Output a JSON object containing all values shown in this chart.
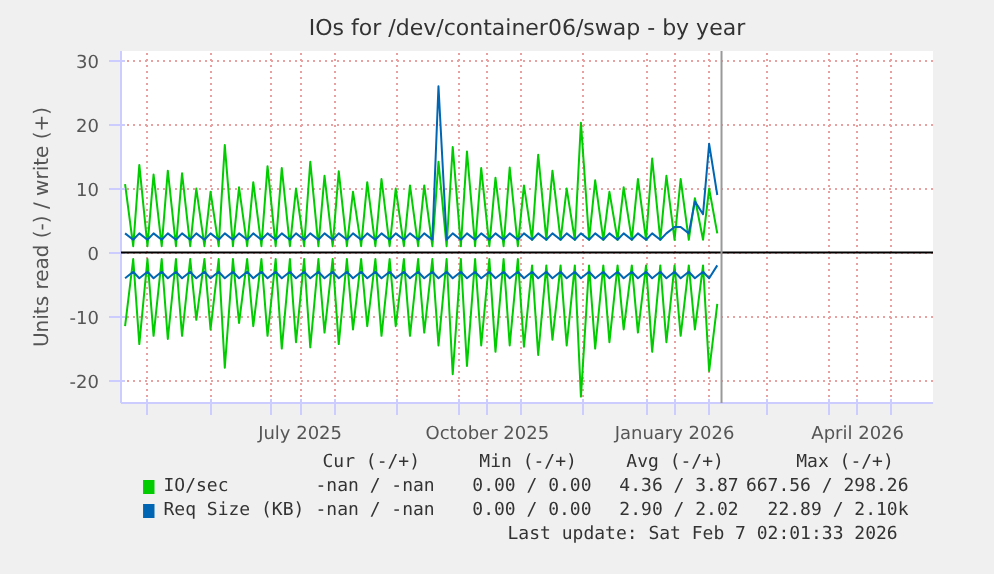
{
  "chart_data": {
    "type": "line",
    "title": "IOs for /dev/container06/swap - by year",
    "ylabel": "Units read (-) / write (+)",
    "x": [
      "2025-04-20",
      "2025-04-24",
      "2025-04-27",
      "2025-05-01",
      "2025-05-04",
      "2025-05-08",
      "2025-05-11",
      "2025-05-15",
      "2025-05-18",
      "2025-05-22",
      "2025-05-25",
      "2025-05-29",
      "2025-06-01",
      "2025-06-05",
      "2025-06-08",
      "2025-06-12",
      "2025-06-15",
      "2025-06-19",
      "2025-06-22",
      "2025-06-26",
      "2025-06-29",
      "2025-07-03",
      "2025-07-06",
      "2025-07-10",
      "2025-07-13",
      "2025-07-17",
      "2025-07-20",
      "2025-07-24",
      "2025-07-27",
      "2025-07-31",
      "2025-08-03",
      "2025-08-07",
      "2025-08-10",
      "2025-08-14",
      "2025-08-17",
      "2025-08-21",
      "2025-08-24",
      "2025-08-28",
      "2025-08-31",
      "2025-09-04",
      "2025-09-07",
      "2025-09-11",
      "2025-09-14",
      "2025-09-18",
      "2025-09-21",
      "2025-09-25",
      "2025-09-28",
      "2025-10-02",
      "2025-10-05",
      "2025-10-09",
      "2025-10-12",
      "2025-10-16",
      "2025-10-19",
      "2025-10-23",
      "2025-10-26",
      "2025-10-30",
      "2025-11-02",
      "2025-11-06",
      "2025-11-09",
      "2025-11-13",
      "2025-11-16",
      "2025-11-20",
      "2025-11-23",
      "2025-11-27",
      "2025-11-30",
      "2025-12-04",
      "2025-12-07",
      "2025-12-11",
      "2025-12-14",
      "2025-12-18",
      "2025-12-21",
      "2025-12-25",
      "2025-12-28",
      "2026-01-01",
      "2026-01-04",
      "2026-01-08",
      "2026-01-11",
      "2026-01-15",
      "2026-01-18",
      "2026-01-22",
      "2026-01-25",
      "2026-01-29",
      "2026-02-01",
      "2026-02-05"
    ],
    "series": [
      {
        "name": "IO/sec",
        "color": "#00cc00",
        "values": [
          10.7,
          1,
          13.7,
          1,
          12.2,
          1,
          12.8,
          1,
          12.4,
          1,
          10,
          1,
          9.5,
          1,
          16.8,
          1,
          10.2,
          1,
          11,
          1,
          13.5,
          1,
          13.2,
          1,
          10,
          1,
          14.2,
          1,
          12,
          1,
          12.7,
          1,
          9.5,
          1,
          11,
          1,
          11.5,
          1,
          10,
          1,
          10.5,
          1,
          10.5,
          1,
          14.2,
          1,
          16.5,
          1,
          15.8,
          1,
          13.2,
          1,
          11.7,
          1,
          13.3,
          1,
          10.5,
          2,
          15.3,
          2,
          12.8,
          2,
          10,
          2,
          20.3,
          2,
          11.3,
          2,
          9.5,
          2,
          10.2,
          2,
          11.5,
          2,
          14.7,
          2,
          12,
          2,
          11.5,
          2,
          8.5,
          2,
          10,
          3
        ]
      },
      {
        "color": "#00cc00",
        "values": [
          -11.5,
          -1,
          -14.3,
          -1,
          -13,
          -1,
          -13.5,
          -1,
          -13,
          -1,
          -10.5,
          -1,
          -12,
          -1,
          -18,
          -1,
          -11,
          -1,
          -11.5,
          -1,
          -13,
          -1,
          -15,
          -1,
          -14,
          -1,
          -14.8,
          -1,
          -12.5,
          -1,
          -14.3,
          -1,
          -12,
          -1,
          -11.5,
          -1,
          -13,
          -1,
          -11.5,
          -1,
          -13,
          -1,
          -12.5,
          -1,
          -14.5,
          -1,
          -19,
          -1,
          -17.7,
          -1,
          -14.5,
          -1,
          -15.5,
          -1,
          -14.5,
          -1,
          -14.7,
          -2,
          -16,
          -2,
          -13.6,
          -2,
          -14.5,
          -2,
          -22.5,
          -2,
          -15,
          -2,
          -14,
          -2,
          -12,
          -2,
          -12.5,
          -2,
          -15.5,
          -2,
          -14,
          -2,
          -13,
          -2,
          -12,
          -2,
          -18.5,
          -8
        ]
      },
      {
        "name": "Req Size (KB)",
        "color": "#0066b3",
        "values": [
          3,
          2,
          3,
          2,
          3,
          2,
          3,
          2,
          3,
          2,
          3,
          2,
          3,
          2,
          3,
          2,
          3,
          2,
          3,
          2,
          3,
          2,
          3,
          2,
          3,
          2,
          3,
          2,
          3,
          2,
          3,
          2,
          3,
          2,
          3,
          2,
          3,
          2,
          3,
          2,
          3,
          2,
          3,
          2,
          26,
          2,
          3,
          2,
          3,
          2,
          3,
          2,
          3,
          2,
          3,
          2,
          3,
          2,
          3,
          2,
          3,
          2,
          3,
          2,
          3,
          2,
          3,
          2,
          3,
          2,
          3,
          2,
          3,
          2,
          3,
          2,
          3,
          4,
          4,
          3,
          8,
          6,
          17,
          9
        ]
      },
      {
        "color": "#0066b3",
        "values": [
          -4,
          -3,
          -4,
          -3,
          -4,
          -3,
          -4,
          -3,
          -4,
          -3,
          -4,
          -3,
          -4,
          -3,
          -4,
          -3,
          -4,
          -3,
          -4,
          -3,
          -4,
          -3,
          -4,
          -3,
          -4,
          -3,
          -4,
          -3,
          -4,
          -3,
          -4,
          -3,
          -4,
          -3,
          -4,
          -3,
          -4,
          -3,
          -4,
          -3,
          -4,
          -3,
          -4,
          -3,
          -4,
          -3,
          -4,
          -3,
          -4,
          -3,
          -4,
          -3,
          -4,
          -3,
          -4,
          -3,
          -4,
          -3,
          -4,
          -3,
          -4,
          -3,
          -4,
          -3,
          -4,
          -3,
          -4,
          -3,
          -4,
          -3,
          -4,
          -3,
          -4,
          -3,
          -4,
          -3,
          -4,
          -3,
          -4,
          -3,
          -4,
          -3,
          -4,
          -2
        ]
      }
    ],
    "xlim": [
      "2025-04-18",
      "2026-05-22"
    ],
    "xticks": [
      {
        "value": "2025-05-01",
        "label": null
      },
      {
        "value": "2025-06-01",
        "label": null
      },
      {
        "value": "2025-07-01",
        "label": null
      },
      {
        "value": "2025-07-15",
        "label": "July 2025"
      },
      {
        "value": "2025-08-01",
        "label": null
      },
      {
        "value": "2025-09-01",
        "label": null
      },
      {
        "value": "2025-10-01",
        "label": null
      },
      {
        "value": "2025-10-15",
        "label": "October 2025"
      },
      {
        "value": "2025-11-01",
        "label": null
      },
      {
        "value": "2025-12-01",
        "label": null
      },
      {
        "value": "2026-01-01",
        "label": null
      },
      {
        "value": "2026-01-15",
        "label": "January 2026"
      },
      {
        "value": "2026-02-01",
        "label": null
      },
      {
        "value": "2026-03-01",
        "label": null
      },
      {
        "value": "2026-04-01",
        "label": null
      },
      {
        "value": "2026-04-15",
        "label": "April 2026"
      },
      {
        "value": "2026-05-01",
        "label": null
      }
    ],
    "ylim": [
      -23.5,
      31.5
    ],
    "yticks": [
      -20,
      -10,
      0,
      10,
      20,
      30
    ],
    "ref_lines": [
      {
        "axis": "y",
        "value": 0,
        "color": "#000000"
      },
      {
        "axis": "x",
        "value": "2026-02-07T02:01",
        "color": "#999999"
      }
    ],
    "grid": true,
    "legend": "bottom",
    "line_style": "solid",
    "marker": "none",
    "annotations": [
      "Cur (-/+)",
      "Min (-/+)",
      "Avg (-/+)",
      "Max (-/+)",
      "-nan / -nan",
      "0.00 / 0.00",
      "4.36 / 3.87",
      "667.56 / 298.26",
      "-nan / -nan",
      "0.00 / 0.00",
      "2.90 / 2.02",
      "22.89 / 2.10k",
      "Last update: Sat Feb  7 02:01:33 2026"
    ]
  }
}
